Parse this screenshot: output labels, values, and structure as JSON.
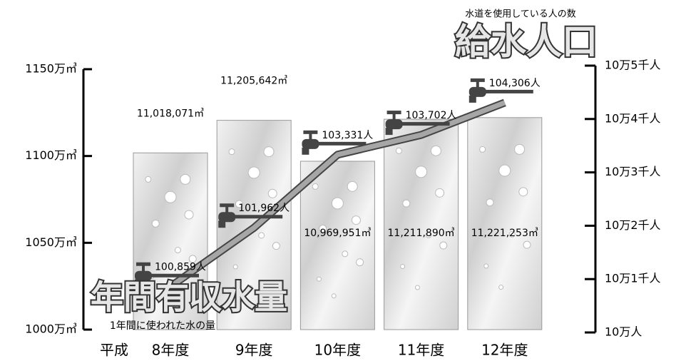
{
  "chart_data": {
    "type": "bar_line",
    "era_label": "平成",
    "categories": [
      "8年度",
      "9年度",
      "10年度",
      "11年度",
      "12年度"
    ],
    "series": [
      {
        "name": "年間有収水量",
        "description": "1年間に使われた水の量",
        "type": "bar",
        "color": "#d9d9d9",
        "values": [
          11018071,
          11205642,
          10969951,
          11211890,
          11221253
        ],
        "value_labels": [
          "11,018,071㎥",
          "11,205,642㎥",
          "10,969,951㎥",
          "11,211,890㎥",
          "11,221,253㎥"
        ]
      },
      {
        "name": "給水人口",
        "description": "水道を使用している人の数",
        "type": "line",
        "axis": "y2",
        "color": "#a6a6a6",
        "values": [
          100859,
          101962,
          103331,
          103702,
          104306
        ],
        "value_labels": [
          "100,859人",
          "101,962人",
          "103,331人",
          "103,702人",
          "104,306人"
        ]
      }
    ],
    "ylim": [
      10000000,
      11500000
    ],
    "yticks": [
      {
        "value": 10000000,
        "label": "1000万㎥"
      },
      {
        "value": 10500000,
        "label": "1050万㎥"
      },
      {
        "value": 11000000,
        "label": "1100万㎥"
      },
      {
        "value": 11500000,
        "label": "1150万㎥"
      }
    ],
    "y2lim": [
      100000,
      105000
    ],
    "y2ticks": [
      {
        "value": 100000,
        "label": "10万人"
      },
      {
        "value": 101000,
        "label": "10万1千人"
      },
      {
        "value": 102000,
        "label": "10万2千人"
      },
      {
        "value": 103000,
        "label": "10万3千人"
      },
      {
        "value": 104000,
        "label": "10万4千人"
      },
      {
        "value": 105000,
        "label": "10万5千人"
      }
    ]
  }
}
